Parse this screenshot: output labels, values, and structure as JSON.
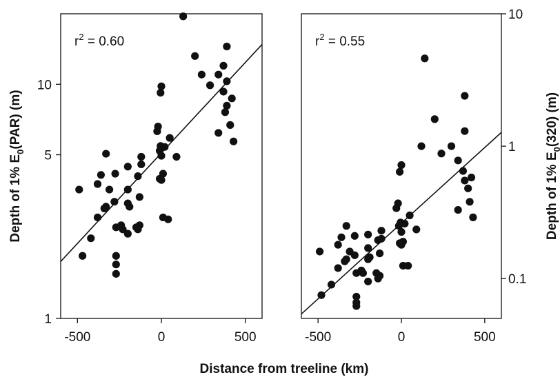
{
  "chart_data": [
    {
      "type": "scatter",
      "panel": "left",
      "ylabel": "Depth of 1% E0(PAR) (m)",
      "ylabel_parts": {
        "prefix": "Depth of 1% E",
        "sub": "0",
        "suffix": "(PAR) (m)"
      },
      "yscale": "log",
      "ylim": [
        1,
        20
      ],
      "xlim": [
        -600,
        600
      ],
      "x_ticks": [
        "-500",
        "0",
        "500"
      ],
      "x_tick_values": [
        -500,
        0,
        500
      ],
      "y_ticks": [
        "1",
        "5",
        "10"
      ],
      "y_tick_values": [
        1,
        5,
        10
      ],
      "annotation": {
        "prefix": "r",
        "sup": "2",
        "suffix": " = 0.60"
      },
      "fit_line": [
        [
          -600,
          1.75
        ],
        [
          600,
          14.8
        ]
      ],
      "points": [
        [
          130,
          19.5
        ],
        [
          390,
          14.5
        ],
        [
          200,
          13.2
        ],
        [
          370,
          12.0
        ],
        [
          240,
          11.0
        ],
        [
          340,
          11.0
        ],
        [
          390,
          10.3
        ],
        [
          290,
          9.9
        ],
        [
          0,
          9.8
        ],
        [
          -5,
          9.2
        ],
        [
          370,
          9.3
        ],
        [
          420,
          8.7
        ],
        [
          390,
          8.1
        ],
        [
          380,
          7.6
        ],
        [
          410,
          6.7
        ],
        [
          -20,
          6.6
        ],
        [
          -25,
          6.3
        ],
        [
          340,
          6.2
        ],
        [
          50,
          5.9
        ],
        [
          430,
          5.7
        ],
        [
          -5,
          5.45
        ],
        [
          20,
          5.4
        ],
        [
          -10,
          5.2
        ],
        [
          90,
          4.9
        ],
        [
          -120,
          4.9
        ],
        [
          -330,
          5.05
        ],
        [
          0,
          4.95
        ],
        [
          -120,
          4.55
        ],
        [
          -200,
          4.45
        ],
        [
          -360,
          4.1
        ],
        [
          -275,
          4.15
        ],
        [
          -140,
          4.05
        ],
        [
          10,
          4.15
        ],
        [
          -10,
          3.95
        ],
        [
          0,
          3.9
        ],
        [
          -380,
          3.75
        ],
        [
          -200,
          3.55
        ],
        [
          -310,
          3.55
        ],
        [
          -490,
          3.55
        ],
        [
          -130,
          3.3
        ],
        [
          -280,
          3.15
        ],
        [
          -200,
          3.1
        ],
        [
          -190,
          3.0
        ],
        [
          -330,
          3.0
        ],
        [
          -340,
          2.95
        ],
        [
          -380,
          2.7
        ],
        [
          10,
          2.7
        ],
        [
          40,
          2.65
        ],
        [
          -270,
          2.45
        ],
        [
          -240,
          2.5
        ],
        [
          -230,
          2.4
        ],
        [
          -150,
          2.45
        ],
        [
          -130,
          2.5
        ],
        [
          -200,
          2.3
        ],
        [
          -140,
          2.4
        ],
        [
          -420,
          2.2
        ],
        [
          -470,
          1.85
        ],
        [
          -270,
          1.85
        ],
        [
          -270,
          1.7
        ],
        [
          -270,
          1.55
        ]
      ]
    },
    {
      "type": "scatter",
      "panel": "right",
      "ylabel": "Depth of 1% E0(320) (m)",
      "ylabel_parts": {
        "prefix": "Depth of 1% E",
        "sub": "0",
        "suffix": "(320) (m)"
      },
      "yscale": "log",
      "ylim": [
        0.05,
        10
      ],
      "xlim": [
        -600,
        600
      ],
      "x_ticks": [
        "-500",
        "0",
        "500"
      ],
      "x_tick_values": [
        -500,
        0,
        500
      ],
      "y_ticks": [
        "0.1",
        "1",
        "10"
      ],
      "y_tick_values": [
        0.1,
        1,
        10
      ],
      "annotation": {
        "prefix": "r",
        "sup": "2",
        "suffix": " = 0.55"
      },
      "fit_line": [
        [
          -600,
          0.054
        ],
        [
          600,
          1.27
        ]
      ],
      "points": [
        [
          140,
          4.6
        ],
        [
          380,
          2.4
        ],
        [
          200,
          1.6
        ],
        [
          380,
          1.3
        ],
        [
          120,
          1.0
        ],
        [
          300,
          1.0
        ],
        [
          240,
          0.88
        ],
        [
          340,
          0.78
        ],
        [
          0,
          0.72
        ],
        [
          -10,
          0.64
        ],
        [
          370,
          0.65
        ],
        [
          420,
          0.58
        ],
        [
          380,
          0.55
        ],
        [
          400,
          0.48
        ],
        [
          410,
          0.38
        ],
        [
          -20,
          0.37
        ],
        [
          -30,
          0.34
        ],
        [
          340,
          0.33
        ],
        [
          50,
          0.3
        ],
        [
          430,
          0.29
        ],
        [
          -5,
          0.265
        ],
        [
          20,
          0.26
        ],
        [
          -15,
          0.25
        ],
        [
          90,
          0.235
        ],
        [
          -120,
          0.23
        ],
        [
          -330,
          0.25
        ],
        [
          0,
          0.225
        ],
        [
          -120,
          0.2
        ],
        [
          -200,
          0.215
        ],
        [
          -360,
          0.205
        ],
        [
          -280,
          0.21
        ],
        [
          -140,
          0.195
        ],
        [
          10,
          0.19
        ],
        [
          -10,
          0.185
        ],
        [
          0,
          0.18
        ],
        [
          -380,
          0.18
        ],
        [
          -200,
          0.17
        ],
        [
          -310,
          0.16
        ],
        [
          -490,
          0.16
        ],
        [
          -130,
          0.155
        ],
        [
          -280,
          0.15
        ],
        [
          -190,
          0.145
        ],
        [
          -200,
          0.14
        ],
        [
          -330,
          0.14
        ],
        [
          -340,
          0.135
        ],
        [
          -380,
          0.12
        ],
        [
          10,
          0.125
        ],
        [
          40,
          0.125
        ],
        [
          -270,
          0.11
        ],
        [
          -240,
          0.115
        ],
        [
          -230,
          0.11
        ],
        [
          -150,
          0.11
        ],
        [
          -140,
          0.1
        ],
        [
          -200,
          0.095
        ],
        [
          -130,
          0.105
        ],
        [
          -420,
          0.09
        ],
        [
          -480,
          0.075
        ],
        [
          -270,
          0.073
        ],
        [
          -270,
          0.066
        ],
        [
          -270,
          0.062
        ]
      ]
    }
  ],
  "xlabel": "Distance from treeline (km)"
}
